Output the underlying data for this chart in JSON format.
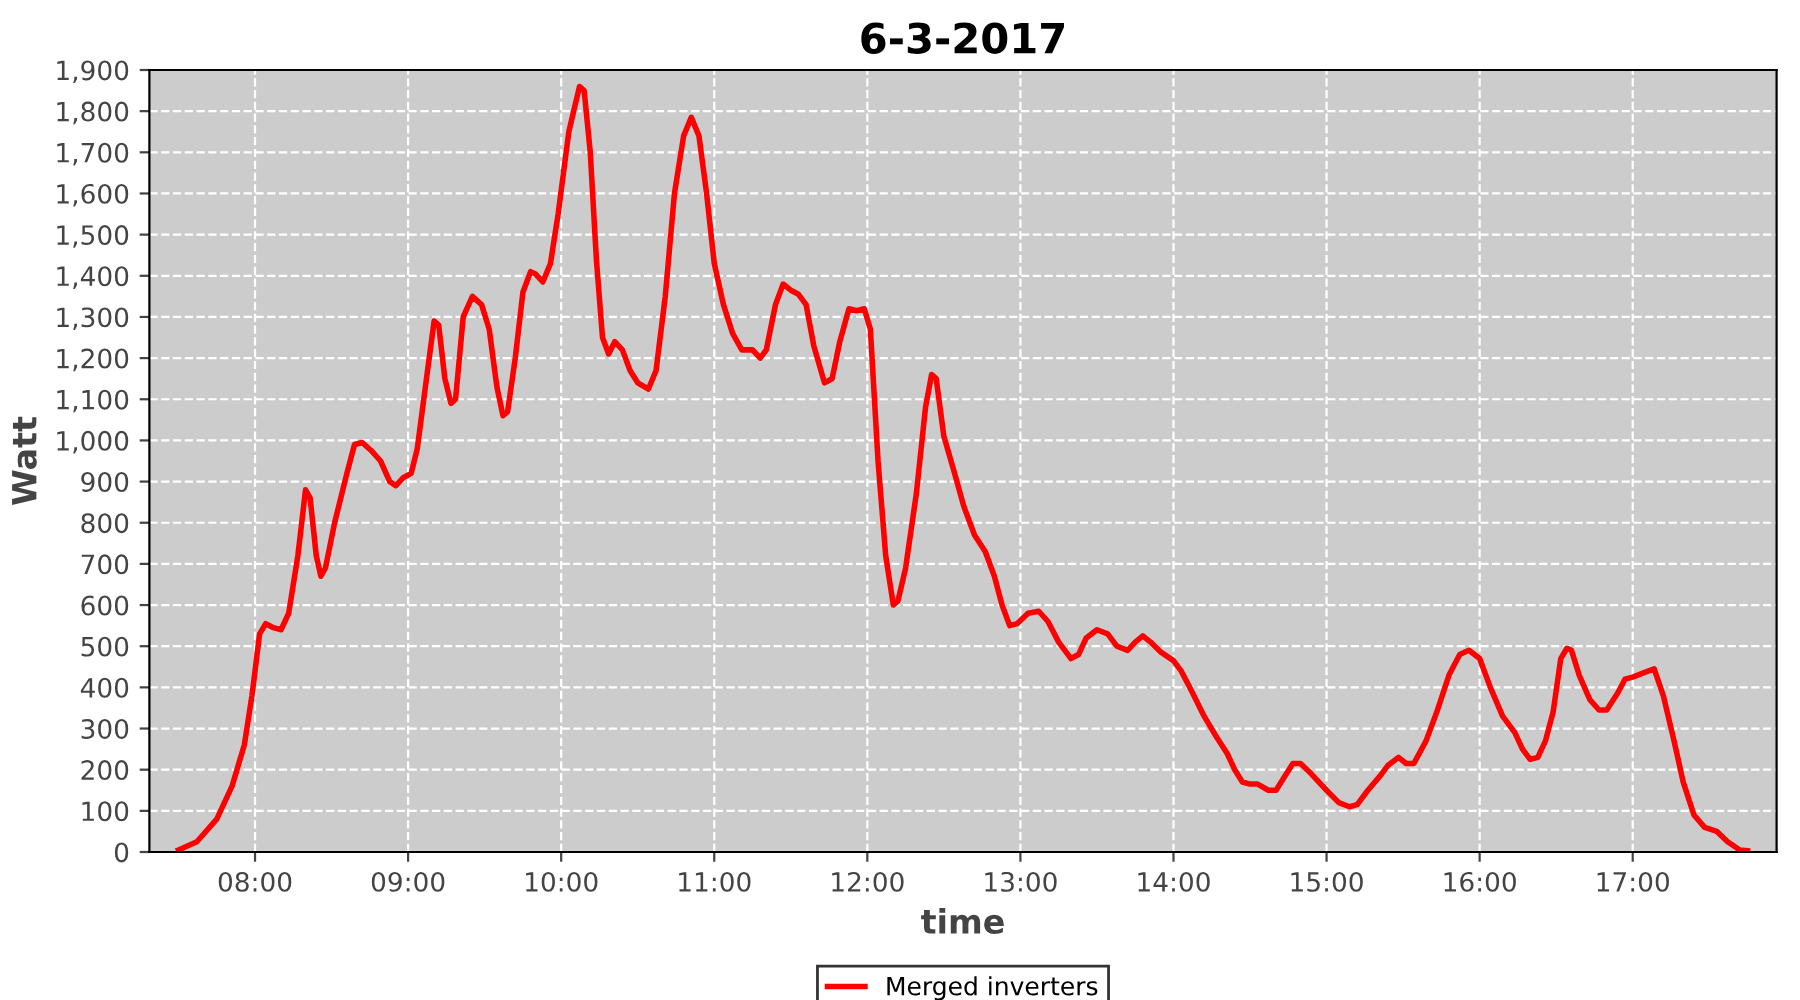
{
  "chart_data": {
    "type": "line",
    "title": "6-3-2017",
    "xlabel": "time",
    "ylabel": "Watt",
    "x": [
      7.5,
      7.62,
      7.75,
      7.85,
      7.93,
      7.98,
      8.03,
      8.07,
      8.12,
      8.17,
      8.22,
      8.28,
      8.33,
      8.36,
      8.4,
      8.43,
      8.46,
      8.52,
      8.6,
      8.65,
      8.7,
      8.76,
      8.82,
      8.88,
      8.92,
      8.97,
      9.02,
      9.06,
      9.12,
      9.17,
      9.2,
      9.24,
      9.28,
      9.31,
      9.36,
      9.42,
      9.48,
      9.53,
      9.58,
      9.62,
      9.65,
      9.7,
      9.75,
      9.8,
      9.83,
      9.88,
      9.93,
      9.98,
      10.05,
      10.12,
      10.15,
      10.19,
      10.23,
      10.27,
      10.31,
      10.35,
      10.4,
      10.45,
      10.5,
      10.57,
      10.62,
      10.68,
      10.74,
      10.8,
      10.85,
      10.9,
      10.95,
      11.0,
      11.06,
      11.12,
      11.18,
      11.25,
      11.3,
      11.34,
      11.4,
      11.45,
      11.5,
      11.55,
      11.6,
      11.65,
      11.72,
      11.77,
      11.82,
      11.88,
      11.93,
      11.98,
      12.02,
      12.07,
      12.12,
      12.17,
      12.2,
      12.25,
      12.32,
      12.38,
      12.42,
      12.45,
      12.5,
      12.57,
      12.63,
      12.7,
      12.77,
      12.83,
      12.88,
      12.93,
      12.98,
      13.05,
      13.12,
      13.18,
      13.25,
      13.33,
      13.38,
      13.43,
      13.5,
      13.57,
      13.63,
      13.7,
      13.75,
      13.8,
      13.85,
      13.92,
      14.0,
      14.05,
      14.12,
      14.2,
      14.28,
      14.35,
      14.4,
      14.45,
      14.5,
      14.55,
      14.62,
      14.67,
      14.72,
      14.78,
      14.83,
      14.9,
      15.0,
      15.08,
      15.15,
      15.2,
      15.27,
      15.35,
      15.4,
      15.47,
      15.52,
      15.57,
      15.65,
      15.72,
      15.8,
      15.87,
      15.93,
      16.0,
      16.07,
      16.15,
      16.23,
      16.28,
      16.33,
      16.38,
      16.43,
      16.48,
      16.53,
      16.57,
      16.6,
      16.65,
      16.72,
      16.78,
      16.83,
      16.9,
      16.95,
      17.0,
      17.07,
      17.14,
      17.2,
      17.27,
      17.33,
      17.4,
      17.47,
      17.55,
      17.62,
      17.7,
      17.75
    ],
    "series": [
      {
        "name": "Merged inverters",
        "color": "#ff0000",
        "values": [
          5,
          25,
          80,
          160,
          260,
          380,
          530,
          555,
          545,
          540,
          580,
          720,
          880,
          860,
          720,
          670,
          690,
          800,
          920,
          990,
          995,
          975,
          950,
          900,
          890,
          910,
          920,
          980,
          1150,
          1290,
          1280,
          1150,
          1090,
          1100,
          1300,
          1350,
          1330,
          1270,
          1130,
          1060,
          1070,
          1200,
          1360,
          1410,
          1405,
          1385,
          1430,
          1550,
          1750,
          1860,
          1850,
          1700,
          1440,
          1250,
          1210,
          1240,
          1220,
          1170,
          1140,
          1125,
          1170,
          1350,
          1600,
          1740,
          1785,
          1740,
          1600,
          1430,
          1330,
          1260,
          1220,
          1220,
          1200,
          1220,
          1330,
          1380,
          1365,
          1355,
          1330,
          1230,
          1140,
          1150,
          1240,
          1320,
          1315,
          1320,
          1270,
          950,
          720,
          600,
          610,
          690,
          870,
          1080,
          1160,
          1150,
          1010,
          920,
          840,
          770,
          730,
          670,
          600,
          550,
          555,
          580,
          585,
          560,
          510,
          470,
          480,
          520,
          540,
          530,
          500,
          490,
          510,
          525,
          510,
          485,
          465,
          440,
          390,
          330,
          280,
          240,
          200,
          170,
          165,
          165,
          150,
          150,
          180,
          215,
          215,
          190,
          150,
          120,
          110,
          115,
          150,
          185,
          210,
          230,
          215,
          215,
          270,
          340,
          430,
          480,
          490,
          470,
          400,
          330,
          290,
          250,
          225,
          230,
          270,
          340,
          470,
          495,
          490,
          430,
          370,
          345,
          345,
          385,
          420,
          425,
          435,
          445,
          380,
          270,
          170,
          90,
          60,
          50,
          25,
          5,
          3
        ]
      }
    ],
    "xlim": [
      7.31,
      17.94
    ],
    "xticks": [
      {
        "value": 8,
        "label": "08:00"
      },
      {
        "value": 9,
        "label": "09:00"
      },
      {
        "value": 10,
        "label": "10:00"
      },
      {
        "value": 11,
        "label": "11:00"
      },
      {
        "value": 12,
        "label": "12:00"
      },
      {
        "value": 13,
        "label": "13:00"
      },
      {
        "value": 14,
        "label": "14:00"
      },
      {
        "value": 15,
        "label": "15:00"
      },
      {
        "value": 16,
        "label": "16:00"
      },
      {
        "value": 17,
        "label": "17:00"
      }
    ],
    "ylim": [
      0,
      1900
    ],
    "yticks": [
      0,
      100,
      200,
      300,
      400,
      500,
      600,
      700,
      800,
      900,
      {
        "value": 1000,
        "label": "1,000"
      },
      {
        "value": 1100,
        "label": "1,100"
      },
      {
        "value": 1200,
        "label": "1,200"
      },
      {
        "value": 1300,
        "label": "1,300"
      },
      {
        "value": 1400,
        "label": "1,400"
      },
      {
        "value": 1500,
        "label": "1,500"
      },
      {
        "value": 1600,
        "label": "1,600"
      },
      {
        "value": 1700,
        "label": "1,700"
      },
      {
        "value": 1800,
        "label": "1,800"
      },
      {
        "value": 1900,
        "label": "1,900"
      }
    ],
    "grid": true,
    "legend": "bottom",
    "marker": "none",
    "line_style": "solid"
  }
}
